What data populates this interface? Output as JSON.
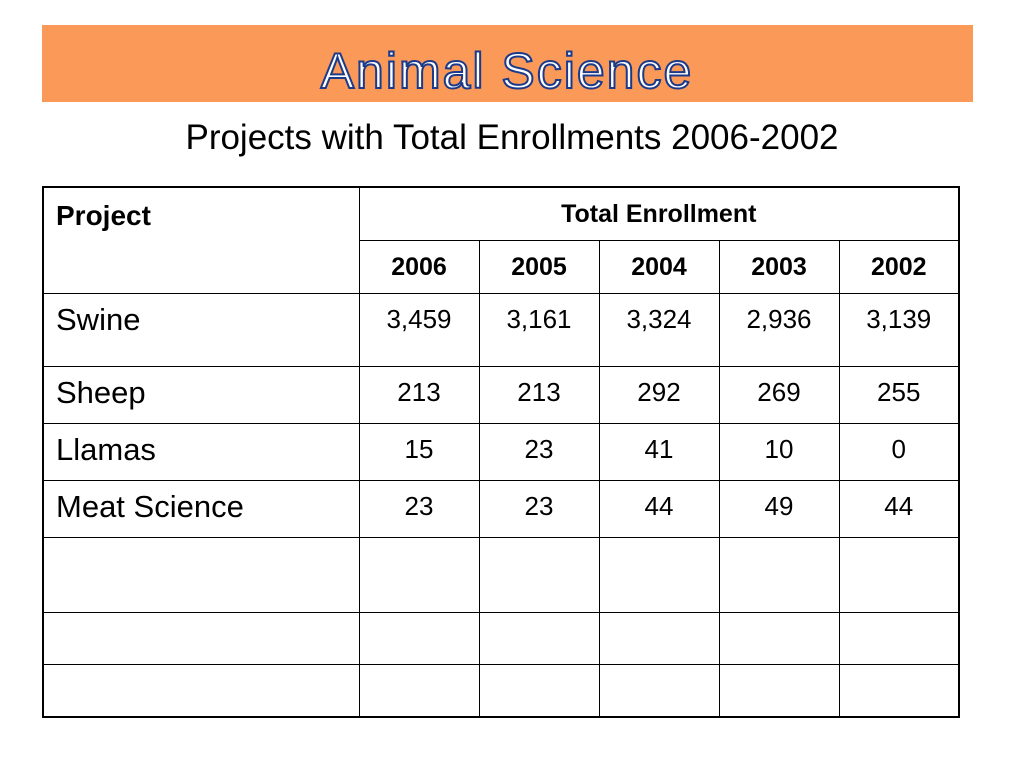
{
  "title": "Animal Science",
  "colors": {
    "banner_bg": "#fb9a58",
    "title_fill": "#ffffff",
    "title_outline": "#1c3a8a"
  },
  "subtitle": "Projects with Total Enrollments 2006-2002",
  "table": {
    "project_header": "Project",
    "group_header": "Total Enrollment",
    "years": [
      "2006",
      "2005",
      "2004",
      "2003",
      "2002"
    ],
    "rows": [
      {
        "project": "Swine",
        "values": [
          "3,459",
          "3,161",
          "3,324",
          "2,936",
          "3,139"
        ]
      },
      {
        "project": "Sheep",
        "values": [
          "213",
          "213",
          "292",
          "269",
          "255"
        ]
      },
      {
        "project": "Llamas",
        "values": [
          "15",
          "23",
          "41",
          "10",
          "0"
        ]
      },
      {
        "project": "Meat Science",
        "values": [
          "23",
          "23",
          "44",
          "49",
          "44"
        ]
      },
      {
        "project": "",
        "values": [
          "",
          "",
          "",
          "",
          ""
        ]
      },
      {
        "project": "",
        "values": [
          "",
          "",
          "",
          "",
          ""
        ]
      },
      {
        "project": "",
        "values": [
          "",
          "",
          "",
          "",
          ""
        ]
      }
    ]
  }
}
